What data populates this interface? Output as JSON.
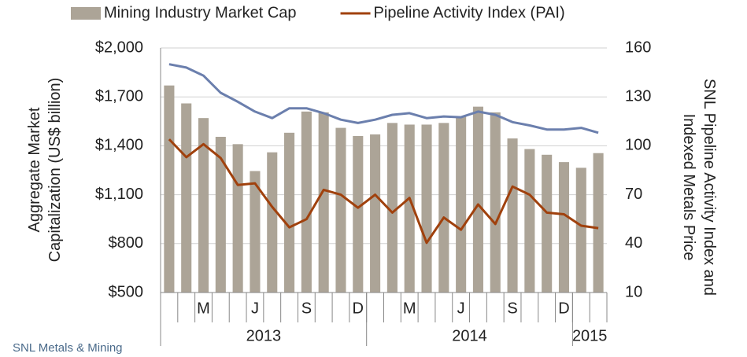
{
  "chart_data": {
    "type": "bar_line",
    "categories": [
      null,
      null,
      "M",
      null,
      null,
      "J",
      null,
      null,
      "S",
      null,
      null,
      "D",
      null,
      null,
      "M",
      null,
      null,
      "J",
      null,
      null,
      "S",
      null,
      null,
      "D",
      null,
      null
    ],
    "groups": [
      {
        "label": "2013",
        "count": 12
      },
      {
        "label": "2014",
        "count": 12
      },
      {
        "label": "2015",
        "count": 2
      }
    ],
    "series": [
      {
        "name": "Mining Industry Market Cap",
        "type": "bar",
        "color": "#aca497",
        "values": [
          1770,
          1660,
          1570,
          1455,
          1410,
          1245,
          1360,
          1480,
          1610,
          1605,
          1510,
          1460,
          1470,
          1540,
          1530,
          1530,
          1540,
          1580,
          1640,
          1605,
          1445,
          1380,
          1345,
          1300,
          1265,
          1355
        ]
      },
      {
        "name": "Pipeline Activity Index (PAI)",
        "type": "line",
        "axis": "y2",
        "color": "#a0410d",
        "values": [
          104,
          93,
          101,
          92.5,
          76,
          77,
          62.5,
          50,
          55,
          73,
          70,
          62,
          70,
          59,
          68,
          40.5,
          56,
          48.5,
          64,
          52,
          75,
          70,
          59,
          58,
          51,
          49.5
        ]
      },
      {
        "type": "line",
        "axis": "y2",
        "color": "#6b7fad",
        "values": [
          150,
          148,
          143,
          132.5,
          127,
          121,
          117,
          123,
          123,
          120,
          116,
          114,
          116,
          119,
          120,
          117,
          118,
          117.5,
          121,
          119,
          114.5,
          112.5,
          110,
          110,
          111,
          108
        ]
      }
    ],
    "ylabel": [
      "Aggregate Market",
      "Capitalization (US$ billion)"
    ],
    "y2label": [
      "SNL Pipeline Activity Index and",
      "Indexed Metals Price"
    ],
    "ylim": [
      500,
      2000
    ],
    "yticks": [
      {
        "value": 500,
        "label": "$500"
      },
      {
        "value": 800,
        "label": "$800"
      },
      {
        "value": 1100,
        "label": "$1,100"
      },
      {
        "value": 1400,
        "label": "$1,400"
      },
      {
        "value": 1700,
        "label": "$1,700"
      },
      {
        "value": 2000,
        "label": "$2,000"
      }
    ],
    "y2lim": [
      10,
      160
    ],
    "y2ticks": [
      10,
      40,
      70,
      100,
      130,
      160
    ],
    "grid": true,
    "logo": "SNL Metals & Mining"
  }
}
